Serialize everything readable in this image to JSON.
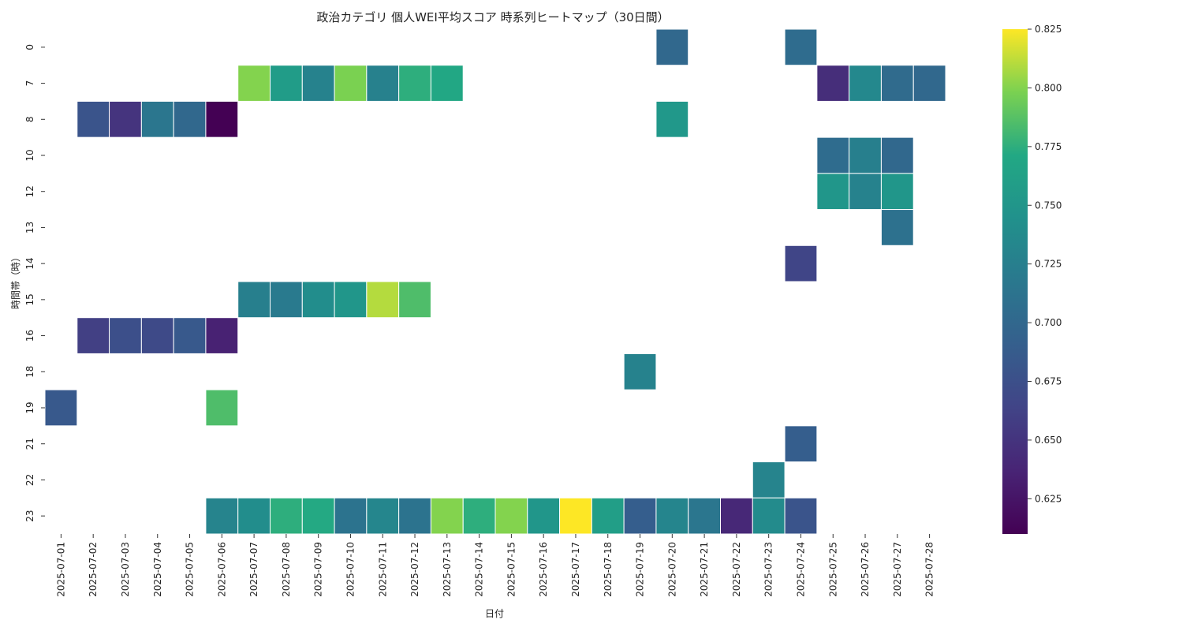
{
  "chart_data": {
    "type": "heatmap",
    "title": "政治カテゴリ 個人WEI平均スコア 時系列ヒートマップ（30日間）",
    "xlabel": "日付",
    "ylabel": "時間帯（時）",
    "x_categories": [
      "2025-07-01",
      "2025-07-02",
      "2025-07-03",
      "2025-07-04",
      "2025-07-05",
      "2025-07-06",
      "2025-07-07",
      "2025-07-08",
      "2025-07-09",
      "2025-07-10",
      "2025-07-11",
      "2025-07-12",
      "2025-07-13",
      "2025-07-14",
      "2025-07-15",
      "2025-07-16",
      "2025-07-17",
      "2025-07-18",
      "2025-07-19",
      "2025-07-20",
      "2025-07-21",
      "2025-07-22",
      "2025-07-23",
      "2025-07-24",
      "2025-07-25",
      "2025-07-26",
      "2025-07-27",
      "2025-07-28"
    ],
    "y_categories": [
      "0",
      "7",
      "8",
      "10",
      "12",
      "13",
      "14",
      "15",
      "16",
      "18",
      "19",
      "21",
      "22",
      "23"
    ],
    "colormap": "viridis",
    "vmin": 0.61,
    "vmax": 0.825,
    "colorbar_ticks": [
      "0.625",
      "0.650",
      "0.675",
      "0.700",
      "0.725",
      "0.750",
      "0.775",
      "0.800",
      "0.825"
    ],
    "cells": [
      {
        "hour": "0",
        "date": "2025-07-20",
        "value": 0.7
      },
      {
        "hour": "0",
        "date": "2025-07-24",
        "value": 0.705
      },
      {
        "hour": "7",
        "date": "2025-07-07",
        "value": 0.8
      },
      {
        "hour": "7",
        "date": "2025-07-08",
        "value": 0.757
      },
      {
        "hour": "7",
        "date": "2025-07-09",
        "value": 0.728
      },
      {
        "hour": "7",
        "date": "2025-07-10",
        "value": 0.798
      },
      {
        "hour": "7",
        "date": "2025-07-11",
        "value": 0.727
      },
      {
        "hour": "7",
        "date": "2025-07-12",
        "value": 0.775
      },
      {
        "hour": "7",
        "date": "2025-07-13",
        "value": 0.77
      },
      {
        "hour": "7",
        "date": "2025-07-25",
        "value": 0.645
      },
      {
        "hour": "7",
        "date": "2025-07-26",
        "value": 0.735
      },
      {
        "hour": "7",
        "date": "2025-07-27",
        "value": 0.703
      },
      {
        "hour": "7",
        "date": "2025-07-28",
        "value": 0.7
      },
      {
        "hour": "8",
        "date": "2025-07-02",
        "value": 0.68
      },
      {
        "hour": "8",
        "date": "2025-07-03",
        "value": 0.65
      },
      {
        "hour": "8",
        "date": "2025-07-04",
        "value": 0.715
      },
      {
        "hour": "8",
        "date": "2025-07-05",
        "value": 0.7
      },
      {
        "hour": "8",
        "date": "2025-07-06",
        "value": 0.61
      },
      {
        "hour": "8",
        "date": "2025-07-20",
        "value": 0.752
      },
      {
        "hour": "10",
        "date": "2025-07-25",
        "value": 0.705
      },
      {
        "hour": "10",
        "date": "2025-07-26",
        "value": 0.725
      },
      {
        "hour": "10",
        "date": "2025-07-27",
        "value": 0.7
      },
      {
        "hour": "12",
        "date": "2025-07-25",
        "value": 0.75
      },
      {
        "hour": "12",
        "date": "2025-07-26",
        "value": 0.728
      },
      {
        "hour": "12",
        "date": "2025-07-27",
        "value": 0.75
      },
      {
        "hour": "13",
        "date": "2025-07-27",
        "value": 0.71
      },
      {
        "hour": "14",
        "date": "2025-07-24",
        "value": 0.665
      },
      {
        "hour": "15",
        "date": "2025-07-07",
        "value": 0.725
      },
      {
        "hour": "15",
        "date": "2025-07-08",
        "value": 0.72
      },
      {
        "hour": "15",
        "date": "2025-07-09",
        "value": 0.74
      },
      {
        "hour": "15",
        "date": "2025-07-10",
        "value": 0.75
      },
      {
        "hour": "15",
        "date": "2025-07-11",
        "value": 0.81
      },
      {
        "hour": "15",
        "date": "2025-07-12",
        "value": 0.785
      },
      {
        "hour": "16",
        "date": "2025-07-02",
        "value": 0.66
      },
      {
        "hour": "16",
        "date": "2025-07-03",
        "value": 0.675
      },
      {
        "hour": "16",
        "date": "2025-07-04",
        "value": 0.67
      },
      {
        "hour": "16",
        "date": "2025-07-05",
        "value": 0.685
      },
      {
        "hour": "16",
        "date": "2025-07-06",
        "value": 0.635
      },
      {
        "hour": "18",
        "date": "2025-07-19",
        "value": 0.728
      },
      {
        "hour": "19",
        "date": "2025-07-01",
        "value": 0.685
      },
      {
        "hour": "19",
        "date": "2025-07-06",
        "value": 0.785
      },
      {
        "hour": "21",
        "date": "2025-07-24",
        "value": 0.69
      },
      {
        "hour": "22",
        "date": "2025-07-23",
        "value": 0.73
      },
      {
        "hour": "23",
        "date": "2025-07-06",
        "value": 0.73
      },
      {
        "hour": "23",
        "date": "2025-07-07",
        "value": 0.74
      },
      {
        "hour": "23",
        "date": "2025-07-08",
        "value": 0.775
      },
      {
        "hour": "23",
        "date": "2025-07-09",
        "value": 0.772
      },
      {
        "hour": "23",
        "date": "2025-07-10",
        "value": 0.712
      },
      {
        "hour": "23",
        "date": "2025-07-11",
        "value": 0.733
      },
      {
        "hour": "23",
        "date": "2025-07-12",
        "value": 0.712
      },
      {
        "hour": "23",
        "date": "2025-07-13",
        "value": 0.8
      },
      {
        "hour": "23",
        "date": "2025-07-14",
        "value": 0.775
      },
      {
        "hour": "23",
        "date": "2025-07-15",
        "value": 0.8
      },
      {
        "hour": "23",
        "date": "2025-07-16",
        "value": 0.75
      },
      {
        "hour": "23",
        "date": "2025-07-17",
        "value": 0.825
      },
      {
        "hour": "23",
        "date": "2025-07-18",
        "value": 0.76
      },
      {
        "hour": "23",
        "date": "2025-07-19",
        "value": 0.69
      },
      {
        "hour": "23",
        "date": "2025-07-20",
        "value": 0.732
      },
      {
        "hour": "23",
        "date": "2025-07-21",
        "value": 0.715
      },
      {
        "hour": "23",
        "date": "2025-07-22",
        "value": 0.64
      },
      {
        "hour": "23",
        "date": "2025-07-23",
        "value": 0.738
      },
      {
        "hour": "23",
        "date": "2025-07-24",
        "value": 0.68
      }
    ]
  }
}
